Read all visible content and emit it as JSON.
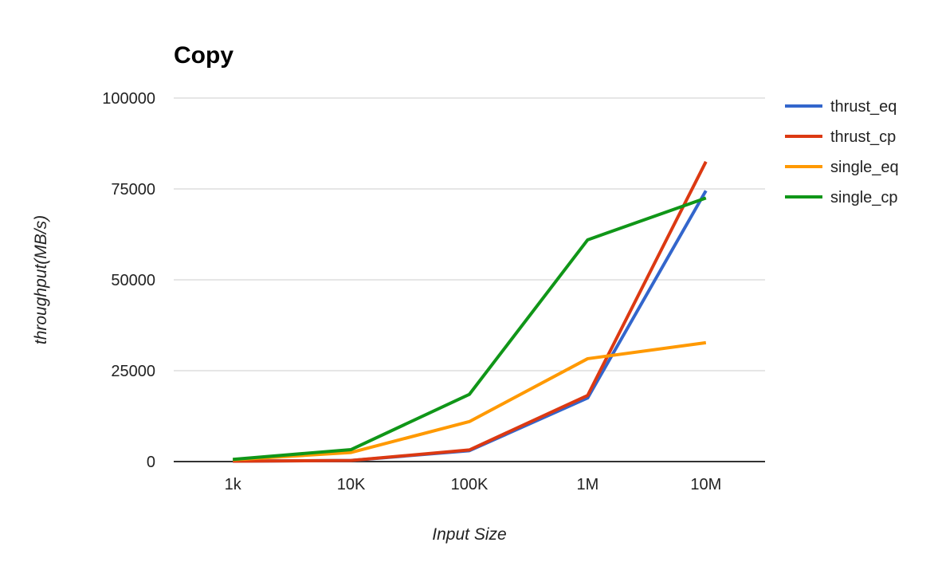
{
  "chart_data": {
    "type": "line",
    "title": "Copy",
    "xlabel": "Input Size",
    "ylabel": "throughput(MB/s)",
    "categories": [
      "1k",
      "10K",
      "100K",
      "1M",
      "10M"
    ],
    "ylim": [
      0,
      100000
    ],
    "yticks": [
      "0",
      "25000",
      "50000",
      "75000",
      "100000"
    ],
    "grid": true,
    "legend_position": "right",
    "series": [
      {
        "name": "thrust_eq",
        "color": "#3366cc",
        "values": [
          100,
          300,
          3000,
          17500,
          74500
        ]
      },
      {
        "name": "thrust_cp",
        "color": "#dc3912",
        "values": [
          100,
          300,
          3200,
          18200,
          82500
        ]
      },
      {
        "name": "single_eq",
        "color": "#ff9900",
        "values": [
          500,
          2500,
          11000,
          28300,
          32700
        ]
      },
      {
        "name": "single_cp",
        "color": "#109618",
        "values": [
          600,
          3300,
          18500,
          61000,
          72500
        ]
      }
    ]
  }
}
